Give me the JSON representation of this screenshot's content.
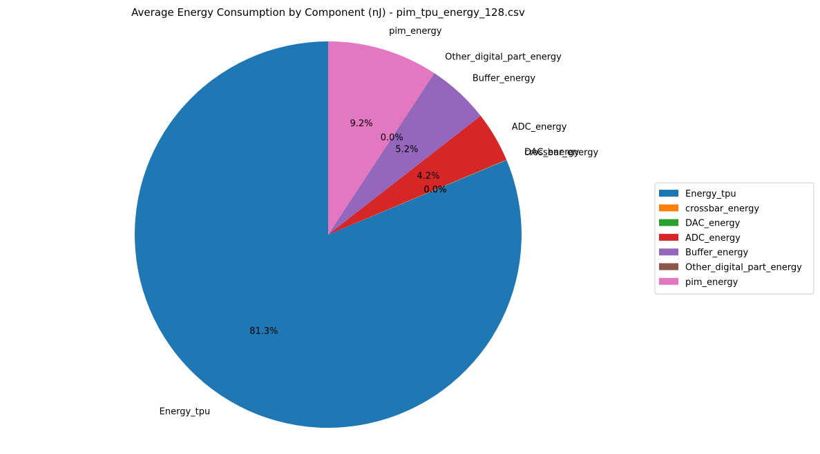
{
  "chart_data": {
    "type": "pie",
    "title": "Average Energy Consumption by Component (nJ) - pim_tpu_energy_128.csv",
    "start_angle_deg": 90,
    "direction": "counterclockwise",
    "legend_position": "right",
    "slices": [
      {
        "label": "Energy_tpu",
        "value": 81.3,
        "pct_label": "81.3%",
        "color": "#1f77b4"
      },
      {
        "label": "crossbar_energy",
        "value": 0.02,
        "pct_label": "0.0%",
        "color": "#ff7f0e"
      },
      {
        "label": "DAC_energy",
        "value": 0.02,
        "pct_label": "0.0%",
        "color": "#2ca02c"
      },
      {
        "label": "ADC_energy",
        "value": 4.2,
        "pct_label": "4.2%",
        "color": "#d62728"
      },
      {
        "label": "Buffer_energy",
        "value": 5.2,
        "pct_label": "5.2%",
        "color": "#9467bd"
      },
      {
        "label": "Other_digital_part_energy",
        "value": 0.02,
        "pct_label": "0.0%",
        "color": "#8c564b"
      },
      {
        "label": "pim_energy",
        "value": 9.24,
        "pct_label": "9.2%",
        "color": "#e377c2"
      }
    ]
  }
}
